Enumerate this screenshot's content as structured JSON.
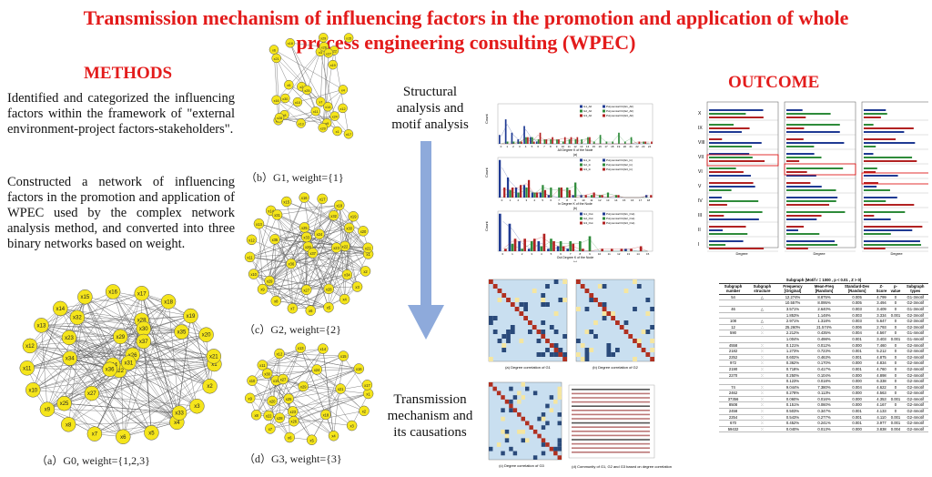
{
  "title": "Transmission mechanism of influencing factors in the promotion and application of whole process engineering consulting (WPEC)",
  "methods": {
    "heading": "METHODS",
    "para1": "Identified and categorized the influencing factors within the framework of \"external environment-project factors-stakeholders\".",
    "para2": "Constructed a network of influencing factors in the promotion and application of WPEC used by the complex network analysis method, and converted into three binary networks based on weight."
  },
  "networks": {
    "g0_caption": "（a）G0, weight={1,2,3}",
    "g1_caption": "（b）G1, weight={1}",
    "g2_caption": "（c）G2, weight={2}",
    "g3_caption": "（d）G3, weight={3}",
    "node_labels": [
      "x1",
      "x2",
      "x3",
      "x4",
      "x5",
      "x6",
      "x7",
      "x8",
      "x9",
      "x10",
      "x11",
      "x12",
      "x13",
      "x14",
      "x15",
      "x16",
      "x17",
      "x18",
      "x19",
      "x20",
      "x21",
      "x22",
      "x23",
      "x24",
      "x25",
      "x26",
      "x27",
      "x28",
      "x29",
      "x30",
      "x31",
      "x32",
      "x33",
      "x34",
      "x35",
      "x36",
      "x37"
    ],
    "node_color": "#f5e51b"
  },
  "middle": {
    "step1": "Structural analysis and motif analysis",
    "step2": "Transmission mechanism and its causations",
    "arrow_color": "#8eaadb"
  },
  "outcome": {
    "heading": "OUTCOME"
  },
  "heatmaps": {
    "captions": [
      "(a)  Degree correlation of G1",
      "(b)  Degree correlation of G2",
      "(c)  Degree correlation of G3",
      "(d)  Community of G1, G2 and G3 based on degree correlation"
    ]
  },
  "chart_data": [
    {
      "type": "bar",
      "title": "(a)",
      "xlabel": "All Degree K of the Node",
      "ylabel": "Count",
      "ylim": [
        0,
        18
      ],
      "x": [
        0,
        1,
        2,
        3,
        4,
        5,
        6,
        7,
        8,
        9,
        10,
        11,
        12,
        13,
        14,
        15,
        16,
        17,
        18,
        19,
        20,
        21,
        22,
        23,
        24
      ],
      "series": [
        {
          "name": "G1_All",
          "values": [
            4,
            11,
            5,
            2,
            8,
            3,
            1,
            0,
            0,
            0,
            0,
            0,
            0,
            0,
            0,
            0,
            0,
            0,
            0,
            0,
            0,
            0,
            0,
            0,
            0
          ]
        },
        {
          "name": "G2_All",
          "values": [
            0,
            1,
            1,
            1,
            3,
            3,
            2,
            2,
            2,
            2,
            1,
            2,
            2,
            2,
            3,
            1,
            4,
            1,
            1,
            5,
            1,
            3,
            0,
            1,
            0
          ]
        },
        {
          "name": "G3_All",
          "values": [
            0,
            0,
            0,
            1,
            3,
            1,
            5,
            2,
            3,
            2,
            3,
            3,
            3,
            0,
            3,
            0,
            0,
            0,
            0,
            0,
            0,
            0,
            1,
            1,
            1
          ]
        }
      ],
      "legend": [
        "G1_All",
        "G2_All",
        "G3_All",
        "Polynomial Fit(G1_All)",
        "Polynomial Fit(G2_All)",
        "Polynomial Fit(G3_All)"
      ]
    },
    {
      "type": "bar",
      "title": "(b)",
      "xlabel": "In Degree K of the Node",
      "ylabel": "Count",
      "ylim": [
        0,
        16
      ],
      "x": [
        0,
        1,
        2,
        3,
        4,
        5,
        6,
        7,
        8,
        9,
        10,
        11,
        12,
        13,
        14,
        15,
        16,
        17,
        18
      ],
      "series": [
        {
          "name": "G1_In",
          "values": [
            15,
            8,
            4,
            5,
            2,
            2,
            1,
            0,
            0,
            1,
            1,
            0,
            0,
            0,
            0,
            0,
            0,
            0,
            1
          ]
        },
        {
          "name": "G2_In",
          "values": [
            0,
            3,
            2,
            4,
            2,
            5,
            4,
            4,
            4,
            6,
            0,
            1,
            1,
            2,
            1,
            0,
            0,
            0,
            0
          ]
        },
        {
          "name": "G3_In",
          "values": [
            4,
            4,
            5,
            7,
            2,
            3,
            0,
            4,
            3,
            0,
            1,
            2,
            1,
            0,
            1,
            0,
            0,
            0,
            1
          ]
        }
      ],
      "legend": [
        "G1_In",
        "G2_In",
        "G3_In",
        "Polynomial Fit(G1_In)",
        "Polynomial Fit(G2_In)",
        "Polynomial Fit(G3_In)"
      ]
    },
    {
      "type": "bar",
      "title": "(c)",
      "xlabel": "Out Degree K of the Node",
      "ylabel": "Count",
      "ylim": [
        0,
        16
      ],
      "x": [
        0,
        1,
        2,
        3,
        4,
        5,
        6,
        7,
        8,
        9,
        10,
        11,
        12,
        13,
        14,
        15
      ],
      "series": [
        {
          "name": "G1_Out",
          "values": [
            15,
            11,
            4,
            1,
            4,
            1,
            2,
            1,
            0,
            0,
            0,
            0,
            0,
            1,
            0,
            0
          ]
        },
        {
          "name": "G2_Out",
          "values": [
            0,
            3,
            1,
            4,
            2,
            5,
            4,
            4,
            4,
            6,
            0,
            0,
            0,
            0,
            0,
            0
          ]
        },
        {
          "name": "G3_Out",
          "values": [
            1,
            5,
            5,
            5,
            7,
            4,
            2,
            3,
            1,
            0,
            1,
            1,
            1,
            1,
            2,
            0
          ]
        }
      ],
      "legend": [
        "G1_Out",
        "G2_Out",
        "G3_Out",
        "Polynomial Fit(G1_Out)",
        "Polynomial Fit(G2_Out)",
        "Polynomial Fit(G3_Out)"
      ]
    }
  ],
  "series_colors": [
    "#1f3a93",
    "#2e8b3a",
    "#b22222"
  ],
  "motif_table": {
    "header_group": "Subgraph (Motif  r = 1000 ,  p < 0.01 ,  Z > 0)",
    "columns": [
      "Subgraph number",
      "Subgraph structure",
      "Frequency [Original]",
      "Mean-Freq [Random]",
      "Standard-Dev [Random]",
      "Z-Score",
      "p-value",
      "Subgraph types"
    ],
    "rows": [
      [
        "54",
        "△",
        "12.274%",
        "8.875%",
        "0.005",
        "4.799",
        "0",
        "G1-3motif"
      ],
      [
        "",
        "",
        "10.557%",
        "8.095%",
        "0.005",
        "3.494",
        "0",
        "G2-3motif"
      ],
      [
        "46",
        "△",
        "3.571%",
        "2.640%",
        "0.003",
        "3.409",
        "0",
        "G1-3motif"
      ],
      [
        "",
        "",
        "1.853%",
        "1.148%",
        "0.003",
        "3.334",
        "0.001",
        "G2-3motif"
      ],
      [
        "108",
        "△",
        "2.971%",
        "1.318%",
        "0.003",
        "5.647",
        "0",
        "G2-3motif"
      ],
      [
        "12",
        "∴",
        "25.260%",
        "21.574%",
        "0.006",
        "2.793",
        "0",
        "G2-3motif"
      ],
      [
        "590",
        "⁙",
        "2.212%",
        "0.435%",
        "0.004",
        "4.567",
        "0",
        "G1-4motif"
      ],
      [
        "",
        "",
        "1.004%",
        "0.498%",
        "0.001",
        "3.403",
        "0.001",
        "G1-4motif"
      ],
      [
        "4558",
        "⁙",
        "0.121%",
        "0.012%",
        "0.000",
        "7.460",
        "0",
        "G2-4motif"
      ],
      [
        "2182",
        "⁙",
        "1.273%",
        "0.723%",
        "0.001",
        "5.212",
        "0",
        "G2-4motif"
      ],
      [
        "2252",
        "⁙",
        "0.602%",
        "0.463%",
        "0.001",
        "4.875",
        "0",
        "G2-4motif"
      ],
      [
        "972",
        "⁙",
        "0.362%",
        "0.170%",
        "0.000",
        "4.834",
        "0",
        "G2-4motif"
      ],
      [
        "2190",
        "⁙",
        "0.718%",
        "0.417%",
        "0.001",
        "4.760",
        "0",
        "G2-4motif"
      ],
      [
        "2270",
        "⁙",
        "0.250%",
        "0.104%",
        "0.000",
        "4.898",
        "0",
        "G2-4motif"
      ],
      [
        "",
        "",
        "0.123%",
        "0.018%",
        "0.000",
        "6.338",
        "0",
        "G2-4motif"
      ],
      [
        "74",
        "⁙",
        "9.044%",
        "7.380%",
        "0.004",
        "4.622",
        "0",
        "G2-4motif"
      ],
      [
        "2462",
        "⁙",
        "0.278%",
        "0.113%",
        "0.000",
        "4.563",
        "0",
        "G2-4motif"
      ],
      [
        "37356",
        "⁙",
        "0.060%",
        "0.016%",
        "0.000",
        "4.353",
        "0.001",
        "G2-4motif"
      ],
      [
        "8508",
        "⁙",
        "0.151%",
        "0.060%",
        "0.000",
        "4.167",
        "0",
        "G2-4motif"
      ],
      [
        "2458",
        "⁙",
        "0.503%",
        "0.347%",
        "0.001",
        "4.133",
        "0",
        "G2-4motif"
      ],
      [
        "2254",
        "⁙",
        "0.543%",
        "0.277%",
        "0.001",
        "4.110",
        "0.001",
        "G2-4motif"
      ],
      [
        "670",
        "⁙",
        "0.452%",
        "0.241%",
        "0.001",
        "3.977",
        "0.001",
        "G2-4motif"
      ],
      [
        "59432",
        "⁙",
        "0.040%",
        "0.013%",
        "0.000",
        "3.838",
        "0.004",
        "G2-4motif"
      ]
    ]
  },
  "outcome_chart": {
    "roman": [
      "X",
      "IX",
      "VIII",
      "VII",
      "VI",
      "V",
      "IV",
      "III",
      "II",
      "I"
    ],
    "xlabel": "Degree"
  }
}
